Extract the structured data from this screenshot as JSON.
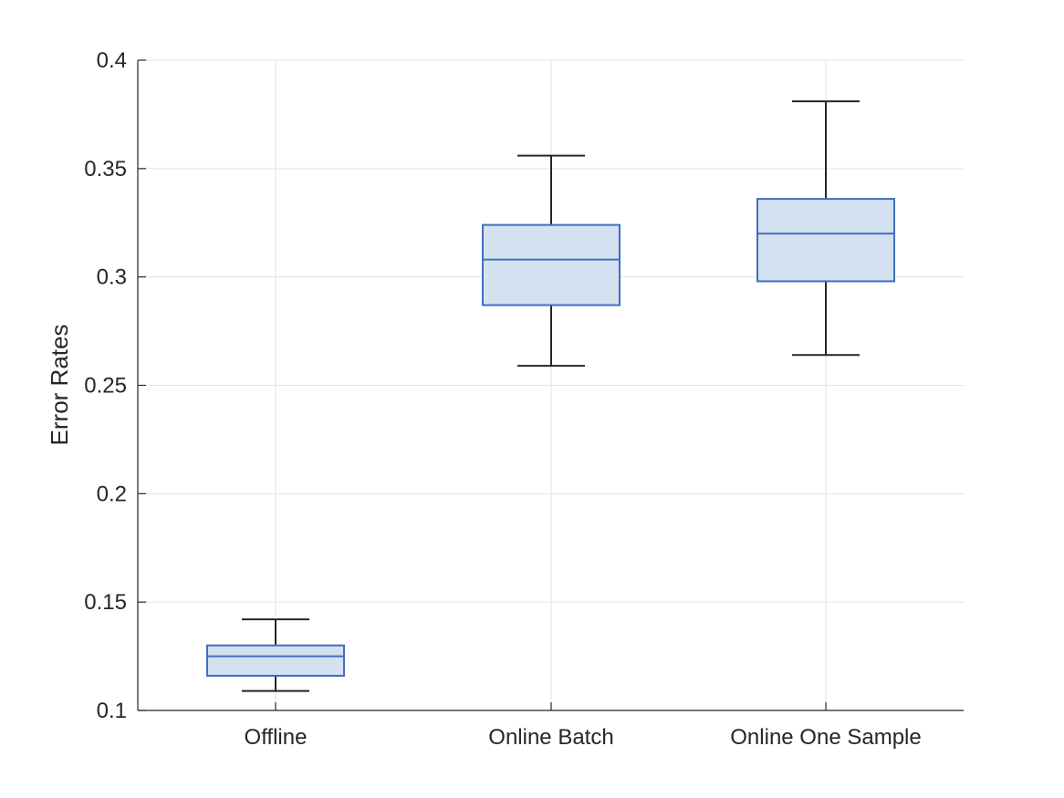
{
  "chart_data": {
    "type": "box",
    "title": "",
    "xlabel": "",
    "ylabel": "Error Rates",
    "ylim": [
      0.1,
      0.4
    ],
    "yticks": [
      0.1,
      0.15,
      0.2,
      0.25,
      0.3,
      0.35,
      0.4
    ],
    "ytick_labels": [
      "0.1",
      "0.15",
      "0.2",
      "0.25",
      "0.3",
      "0.35",
      "0.4"
    ],
    "grid": true,
    "colors": {
      "box_fill": "#d3e1f0",
      "box_edge": "#3f6fbf",
      "whisker": "#262626",
      "grid": "#e3e3e3"
    },
    "categories": [
      "Offline",
      "Online Batch",
      "Online One Sample"
    ],
    "boxes": [
      {
        "category": "Offline",
        "whisker_low": 0.109,
        "q1": 0.116,
        "median": 0.125,
        "q3": 0.13,
        "whisker_high": 0.142
      },
      {
        "category": "Online Batch",
        "whisker_low": 0.259,
        "q1": 0.287,
        "median": 0.308,
        "q3": 0.324,
        "whisker_high": 0.356
      },
      {
        "category": "Online One Sample",
        "whisker_low": 0.264,
        "q1": 0.298,
        "median": 0.32,
        "q3": 0.336,
        "whisker_high": 0.381
      }
    ]
  }
}
